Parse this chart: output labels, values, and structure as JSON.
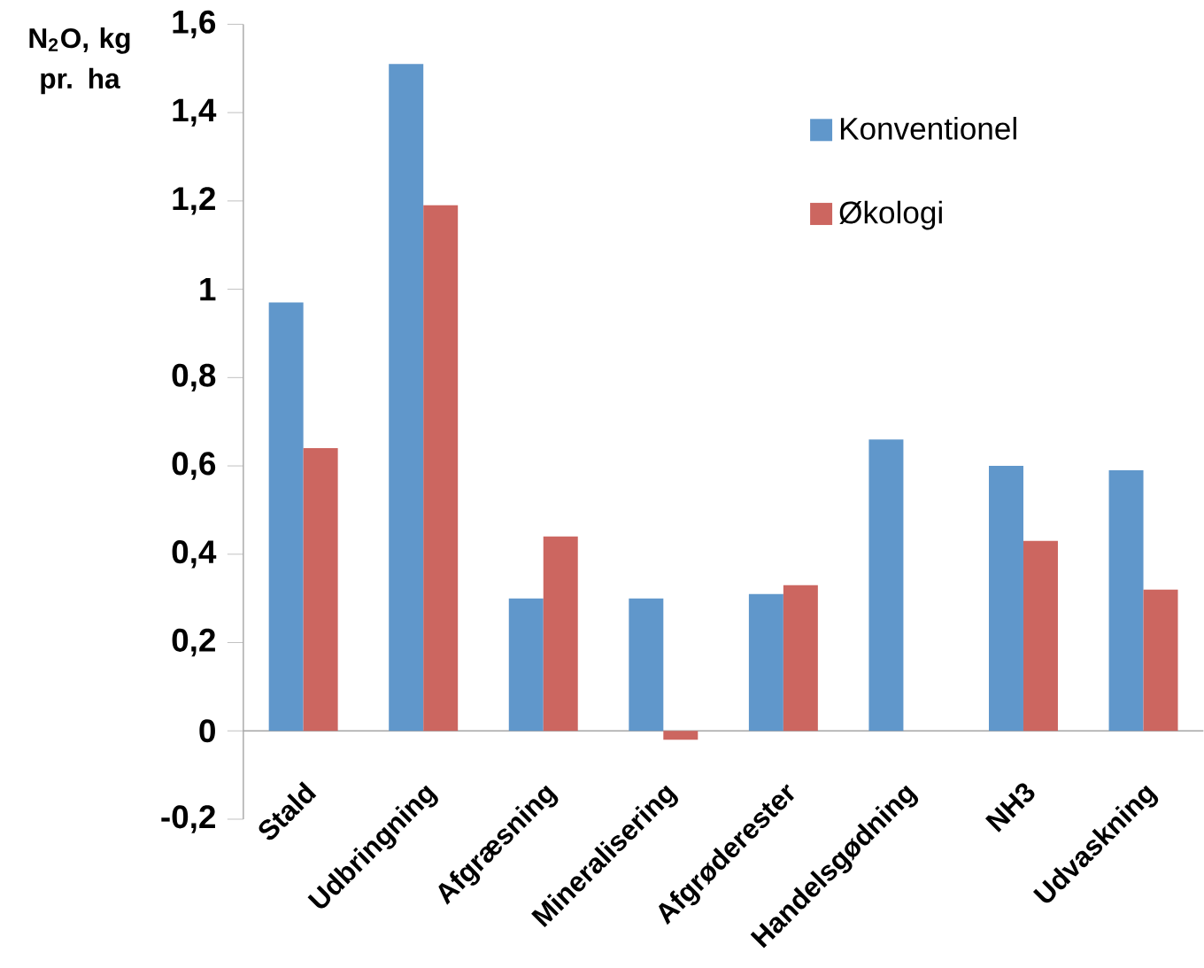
{
  "chart_data": {
    "type": "bar",
    "ylabel": "N$_{2}$O, kg pr. ha",
    "categories": [
      "Stald",
      "Udbringning",
      "Afgræsning",
      "Mineralisering",
      "Afgrøderester",
      "Handelsgødning",
      "NH3",
      "Udvaskning"
    ],
    "series": [
      {
        "name": "Konventionel",
        "color": "#6097cb",
        "values": [
          0.97,
          1.51,
          0.3,
          0.3,
          0.31,
          0.66,
          0.6,
          0.59
        ]
      },
      {
        "name": "Økologi",
        "color": "#cc6660",
        "values": [
          0.64,
          1.19,
          0.44,
          -0.02,
          0.33,
          null,
          0.43,
          0.32
        ]
      }
    ],
    "ylim": [
      -0.2,
      1.6
    ],
    "yticks": [
      {
        "value": -0.2,
        "label": "-0,2"
      },
      0,
      {
        "value": 0.2,
        "label": "0,2"
      },
      {
        "value": 0.4,
        "label": "0,4"
      },
      {
        "value": 0.6,
        "label": "0,6"
      },
      {
        "value": 0.8,
        "label": "0,8"
      },
      1,
      {
        "value": 1.2,
        "label": "1,2"
      },
      {
        "value": 1.4,
        "label": "1,4"
      },
      {
        "value": 1.6,
        "label": "1,6"
      }
    ],
    "grid": false,
    "legend": "top right"
  }
}
